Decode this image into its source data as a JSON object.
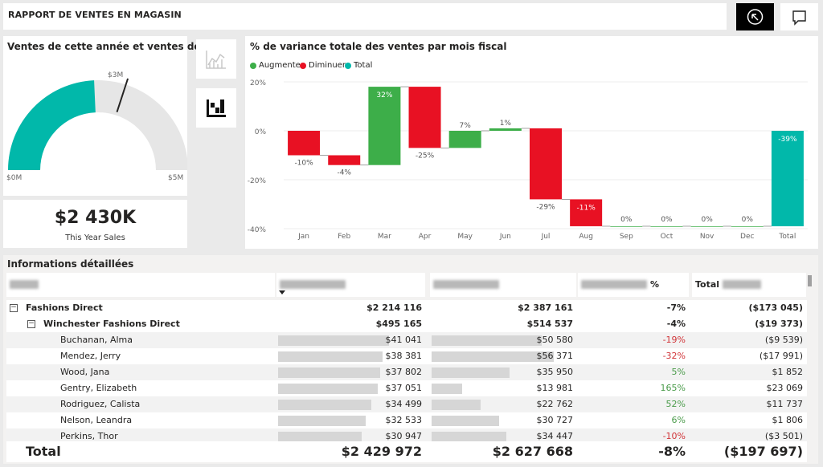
{
  "header": {
    "title": "RAPPORT DE VENTES EN MAGASIN",
    "back_icon": "back-arrow-icon",
    "comment_icon": "comment-icon"
  },
  "gauge": {
    "title": "Ventes de cette année et ventes de l'...",
    "min_label": "$0M",
    "max_label": "$5M",
    "target_label": "$3M",
    "value": 2.43,
    "min": 0,
    "max": 5,
    "target": 3,
    "fill_color": "#01b8aa",
    "track_color": "#e6e6e6"
  },
  "kpi": {
    "value": "$2 430K",
    "label": "This Year Sales"
  },
  "side_buttons": {
    "line_chart_icon": "line-chart-icon",
    "waterfall_icon": "waterfall-chart-icon"
  },
  "waterfall": {
    "title": "% de variance totale des ventes par mois fiscal",
    "legend": [
      {
        "label": "Augmenter",
        "color": "#3dae49"
      },
      {
        "label": "Diminuer",
        "color": "#e81123"
      },
      {
        "label": "Total",
        "color": "#01b8aa"
      }
    ]
  },
  "chart_data": {
    "type": "bar",
    "subtype": "waterfall",
    "categories": [
      "Jan",
      "Feb",
      "Mar",
      "Apr",
      "May",
      "Jun",
      "Jul",
      "Aug",
      "Sep",
      "Oct",
      "Nov",
      "Dec",
      "Total"
    ],
    "values": [
      -10,
      -4,
      32,
      -25,
      7,
      1,
      -29,
      -11,
      0,
      0,
      0,
      0,
      -39
    ],
    "data_labels": [
      "-10%",
      "-4%",
      "32%",
      "-25%",
      "7%",
      "1%",
      "-29%",
      "-11%",
      "0%",
      "0%",
      "0%",
      "0%",
      "-39%"
    ],
    "y_ticks": [
      "20%",
      "0%",
      "-20%",
      "-40%"
    ],
    "ylim": [
      -40,
      20
    ],
    "colors": {
      "increase": "#3dae49",
      "decrease": "#e81123",
      "total": "#01b8aa"
    },
    "title": "% de variance totale des ventes par mois fiscal",
    "grid": true
  },
  "table": {
    "title": "Informations détaillées",
    "headers": [
      "",
      "",
      "",
      "%",
      "Total"
    ],
    "groups": [
      {
        "name": "Fashions Direct",
        "c1": "$2 214 116",
        "c2": "$2 387 161",
        "c3": "-7%",
        "c4": "($173 045)"
      },
      {
        "name": "Winchester Fashions Direct",
        "c1": "$495 165",
        "c2": "$514 537",
        "c3": "-4%",
        "c4": "($19 373)"
      }
    ],
    "rows": [
      {
        "name": "Buchanan, Alma",
        "c1": "$41 041",
        "c2": "$50 580",
        "c3": "-19%",
        "c4": "($9 539)",
        "bar1": 1.0,
        "bar2": 0.9,
        "trend": "neg"
      },
      {
        "name": "Mendez, Jerry",
        "c1": "$38 381",
        "c2": "$56 371",
        "c3": "-32%",
        "c4": "($17 991)",
        "bar1": 0.94,
        "bar2": 1.0,
        "trend": "neg"
      },
      {
        "name": "Wood, Jana",
        "c1": "$37 802",
        "c2": "$35 950",
        "c3": "5%",
        "c4": "$1 852",
        "bar1": 0.92,
        "bar2": 0.64,
        "trend": "pos"
      },
      {
        "name": "Gentry, Elizabeth",
        "c1": "$37 051",
        "c2": "$13 981",
        "c3": "165%",
        "c4": "$23 069",
        "bar1": 0.9,
        "bar2": 0.25,
        "trend": "pos"
      },
      {
        "name": "Rodriguez, Calista",
        "c1": "$34 499",
        "c2": "$22 762",
        "c3": "52%",
        "c4": "$11 737",
        "bar1": 0.84,
        "bar2": 0.4,
        "trend": "pos"
      },
      {
        "name": "Nelson, Leandra",
        "c1": "$32 533",
        "c2": "$30 727",
        "c3": "6%",
        "c4": "$1 806",
        "bar1": 0.79,
        "bar2": 0.55,
        "trend": "pos"
      },
      {
        "name": "Perkins, Thor",
        "c1": "$30 947",
        "c2": "$34 447",
        "c3": "-10%",
        "c4": "($3 501)",
        "bar1": 0.75,
        "bar2": 0.61,
        "trend": "neg"
      }
    ],
    "total": {
      "label": "Total",
      "c1": "$2 429 972",
      "c2": "$2 627 668",
      "c3": "-8%",
      "c4": "($197 697)"
    },
    "expand_symbol": "−"
  }
}
